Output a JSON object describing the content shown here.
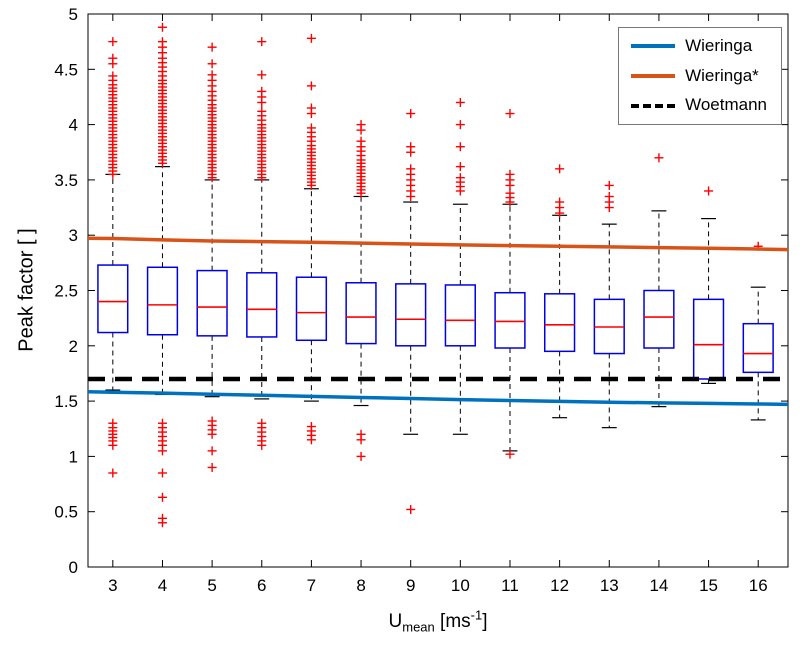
{
  "chart_data": {
    "type": "boxplot",
    "title": "",
    "ylabel": "Peak factor [ ]",
    "xlabel_parts": {
      "base": "U",
      "sub": "mean",
      "unit_prefix": " [ms",
      "sup": "-1",
      "unit_suffix": "]"
    },
    "xlim": [
      2.5,
      16.6
    ],
    "ylim": [
      0,
      5
    ],
    "yticks": [
      0,
      0.5,
      1,
      1.5,
      2,
      2.5,
      3,
      3.5,
      4,
      4.5,
      5
    ],
    "ytick_labels": [
      "0",
      "0.5",
      "1",
      "1.5",
      "2",
      "2.5",
      "3",
      "3.5",
      "4",
      "4.5",
      "5"
    ],
    "categories": [
      3,
      4,
      5,
      6,
      7,
      8,
      9,
      10,
      11,
      12,
      13,
      14,
      15,
      16
    ],
    "box_width": 0.6,
    "cap_width": 0.3,
    "boxes": [
      {
        "x": 3,
        "q1": 2.12,
        "median": 2.4,
        "q3": 2.73,
        "whisker_low": 1.6,
        "whisker_high": 3.55,
        "outliers_high": [
          3.55,
          3.58,
          3.61,
          3.64,
          3.67,
          3.7,
          3.73,
          3.76,
          3.79,
          3.82,
          3.85,
          3.88,
          3.91,
          3.94,
          3.97,
          4.0,
          4.03,
          4.06,
          4.09,
          4.12,
          4.15,
          4.18,
          4.21,
          4.24,
          4.27,
          4.3,
          4.33,
          4.36,
          4.4,
          4.44,
          4.55,
          4.6,
          4.75
        ],
        "outliers_low": [
          0.85,
          1.1,
          1.14,
          1.17,
          1.2,
          1.23,
          1.26,
          1.3
        ]
      },
      {
        "x": 4,
        "q1": 2.1,
        "median": 2.37,
        "q3": 2.71,
        "whisker_low": 1.56,
        "whisker_high": 3.62,
        "outliers_high": [
          3.65,
          3.68,
          3.71,
          3.74,
          3.77,
          3.8,
          3.83,
          3.86,
          3.89,
          3.92,
          3.95,
          3.98,
          4.01,
          4.04,
          4.07,
          4.1,
          4.13,
          4.16,
          4.19,
          4.22,
          4.25,
          4.28,
          4.31,
          4.34,
          4.37,
          4.4,
          4.44,
          4.48,
          4.52,
          4.56,
          4.6,
          4.65,
          4.7,
          4.75,
          4.88
        ],
        "outliers_low": [
          0.4,
          0.44,
          0.63,
          0.85,
          1.05,
          1.1,
          1.14,
          1.18,
          1.22,
          1.26,
          1.3
        ]
      },
      {
        "x": 5,
        "q1": 2.09,
        "median": 2.35,
        "q3": 2.68,
        "whisker_low": 1.54,
        "whisker_high": 3.5,
        "outliers_high": [
          3.52,
          3.55,
          3.58,
          3.61,
          3.64,
          3.67,
          3.7,
          3.73,
          3.76,
          3.79,
          3.82,
          3.85,
          3.88,
          3.91,
          3.94,
          3.97,
          4.0,
          4.03,
          4.06,
          4.09,
          4.12,
          4.15,
          4.18,
          4.22,
          4.26,
          4.3,
          4.35,
          4.4,
          4.45,
          4.55,
          4.7
        ],
        "outliers_low": [
          0.9,
          1.05,
          1.2,
          1.24,
          1.28,
          1.32
        ]
      },
      {
        "x": 6,
        "q1": 2.08,
        "median": 2.33,
        "q3": 2.66,
        "whisker_low": 1.52,
        "whisker_high": 3.5,
        "outliers_high": [
          3.52,
          3.55,
          3.58,
          3.61,
          3.64,
          3.67,
          3.7,
          3.73,
          3.76,
          3.79,
          3.82,
          3.85,
          3.88,
          3.91,
          3.94,
          3.97,
          4.0,
          4.04,
          4.08,
          4.12,
          4.2,
          4.25,
          4.3,
          4.45,
          4.75
        ],
        "outliers_low": [
          1.1,
          1.14,
          1.18,
          1.22,
          1.26,
          1.3
        ]
      },
      {
        "x": 7,
        "q1": 2.05,
        "median": 2.3,
        "q3": 2.62,
        "whisker_low": 1.5,
        "whisker_high": 3.42,
        "outliers_high": [
          3.45,
          3.48,
          3.51,
          3.54,
          3.57,
          3.6,
          3.63,
          3.66,
          3.69,
          3.72,
          3.75,
          3.78,
          3.81,
          3.85,
          3.89,
          3.93,
          3.97,
          4.1,
          4.15,
          4.35,
          4.78
        ],
        "outliers_low": [
          1.15,
          1.19,
          1.23,
          1.27
        ]
      },
      {
        "x": 8,
        "q1": 2.02,
        "median": 2.26,
        "q3": 2.57,
        "whisker_low": 1.46,
        "whisker_high": 3.35,
        "outliers_high": [
          3.38,
          3.41,
          3.44,
          3.47,
          3.5,
          3.53,
          3.56,
          3.59,
          3.62,
          3.65,
          3.68,
          3.72,
          3.76,
          3.8,
          3.85,
          3.95,
          4.0
        ],
        "outliers_low": [
          1.0,
          1.15,
          1.2
        ]
      },
      {
        "x": 9,
        "q1": 2.0,
        "median": 2.24,
        "q3": 2.56,
        "whisker_low": 1.2,
        "whisker_high": 3.3,
        "outliers_high": [
          3.35,
          3.4,
          3.45,
          3.5,
          3.55,
          3.6,
          3.75,
          3.8,
          4.1
        ],
        "outliers_low": [
          0.52
        ]
      },
      {
        "x": 10,
        "q1": 2.0,
        "median": 2.23,
        "q3": 2.55,
        "whisker_low": 1.2,
        "whisker_high": 3.28,
        "outliers_high": [
          3.4,
          3.44,
          3.48,
          3.52,
          3.62,
          3.8,
          4.0,
          4.2
        ],
        "outliers_low": []
      },
      {
        "x": 11,
        "q1": 1.98,
        "median": 2.22,
        "q3": 2.48,
        "whisker_low": 1.05,
        "whisker_high": 3.28,
        "outliers_high": [
          3.3,
          3.34,
          3.38,
          3.45,
          3.5,
          3.55,
          4.1
        ],
        "outliers_low": [
          1.02
        ]
      },
      {
        "x": 12,
        "q1": 1.95,
        "median": 2.19,
        "q3": 2.47,
        "whisker_low": 1.35,
        "whisker_high": 3.18,
        "outliers_high": [
          3.2,
          3.25,
          3.3,
          3.6
        ],
        "outliers_low": []
      },
      {
        "x": 13,
        "q1": 1.93,
        "median": 2.17,
        "q3": 2.42,
        "whisker_low": 1.26,
        "whisker_high": 3.1,
        "outliers_high": [
          3.25,
          3.3,
          3.35,
          3.45
        ],
        "outliers_low": []
      },
      {
        "x": 14,
        "q1": 1.98,
        "median": 2.26,
        "q3": 2.5,
        "whisker_low": 1.45,
        "whisker_high": 3.22,
        "outliers_high": [
          3.7
        ],
        "outliers_low": []
      },
      {
        "x": 15,
        "q1": 1.7,
        "median": 2.01,
        "q3": 2.42,
        "whisker_low": 1.66,
        "whisker_high": 3.15,
        "outliers_high": [
          3.4
        ],
        "outliers_low": []
      },
      {
        "x": 16,
        "q1": 1.76,
        "median": 1.93,
        "q3": 2.2,
        "whisker_low": 1.33,
        "whisker_high": 2.53,
        "outliers_high": [
          2.9
        ],
        "outliers_low": []
      }
    ],
    "lines": [
      {
        "name": "Wieringa",
        "color": "#0072BD",
        "style": "solid",
        "x": [
          2.5,
          3,
          4,
          5,
          6,
          7,
          8,
          9,
          10,
          11,
          12,
          13,
          14,
          15,
          16,
          16.6
        ],
        "y": [
          1.585,
          1.58,
          1.572,
          1.562,
          1.553,
          1.543,
          1.533,
          1.523,
          1.513,
          1.505,
          1.497,
          1.49,
          1.484,
          1.479,
          1.474,
          1.47
        ]
      },
      {
        "name": "Wieringa*",
        "color": "#D95319",
        "style": "solid",
        "x": [
          2.5,
          3,
          4,
          5,
          6,
          7,
          8,
          9,
          10,
          11,
          12,
          13,
          14,
          15,
          16,
          16.6
        ],
        "y": [
          2.972,
          2.97,
          2.958,
          2.948,
          2.942,
          2.936,
          2.928,
          2.92,
          2.913,
          2.906,
          2.9,
          2.894,
          2.888,
          2.882,
          2.875,
          2.87
        ]
      },
      {
        "name": "Woetmann",
        "color": "#000000",
        "style": "dashed",
        "x": [
          2.5,
          16.6
        ],
        "y": [
          1.7,
          1.7
        ]
      }
    ],
    "legend": {
      "position": "northeast",
      "entries": [
        {
          "label": "Wieringa",
          "color": "#0072BD",
          "style": "solid"
        },
        {
          "label": "Wieringa*",
          "color": "#D95319",
          "style": "solid"
        },
        {
          "label": "Woetmann",
          "color": "#000000",
          "style": "dashed"
        }
      ]
    },
    "colors": {
      "box_edge": "#0000E6",
      "median": "#FF0000",
      "whisker": "#000000",
      "outlier": "#FF0000",
      "axis": "#000000",
      "background": "#FFFFFF"
    }
  }
}
